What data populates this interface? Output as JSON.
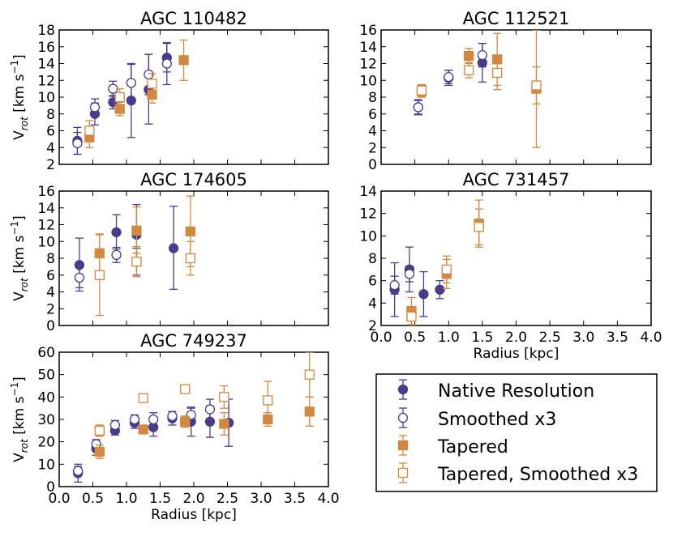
{
  "colors": {
    "native": "#483d8b",
    "tapered": "#d2883e"
  },
  "common": {
    "xlabel": "Radius [kpc]",
    "ylabel_main": "V",
    "ylabel_sub": "rot",
    "ylabel_units": " [km s",
    "ylabel_exp": "−1",
    "ylabel_close": "]"
  },
  "legend": {
    "entries": [
      {
        "label": "Native Resolution",
        "marker": "circle",
        "fill": true,
        "color": "#483d8b"
      },
      {
        "label": "Smoothed x3",
        "marker": "circle",
        "fill": false,
        "color": "#483d8b"
      },
      {
        "label": "Tapered",
        "marker": "square",
        "fill": true,
        "color": "#d2883e"
      },
      {
        "label": "Tapered, Smoothed x3",
        "marker": "square",
        "fill": false,
        "color": "#d2883e"
      }
    ]
  },
  "chart_data": [
    {
      "type": "scatter",
      "title": "AGC 110482",
      "xlim": [
        0,
        4
      ],
      "ylim": [
        2,
        18
      ],
      "yticks": [
        2,
        4,
        6,
        8,
        10,
        12,
        14,
        16,
        18
      ],
      "xticks": [],
      "xlabel": "",
      "ylabel": true,
      "series": [
        {
          "name": "Native Resolution",
          "marker": "circle",
          "fill": true,
          "color": "#483d8b",
          "points": [
            [
              0.27,
              4.8,
              3.2,
              6.4
            ],
            [
              0.53,
              8.0,
              6.7,
              9.3
            ],
            [
              0.8,
              9.4,
              8.6,
              10.2
            ],
            [
              1.07,
              9.6,
              5.2,
              13.9
            ],
            [
              1.33,
              10.9,
              6.8,
              15.1
            ],
            [
              1.6,
              14.7,
              13.0,
              16.4
            ]
          ]
        },
        {
          "name": "Smoothed x3",
          "marker": "circle",
          "fill": false,
          "color": "#483d8b",
          "points": [
            [
              0.27,
              4.5,
              3.2,
              5.8
            ],
            [
              0.53,
              8.8,
              7.8,
              9.8
            ],
            [
              0.8,
              11.0,
              10.1,
              11.9
            ],
            [
              1.07,
              11.7,
              9.4,
              14.0
            ],
            [
              1.33,
              12.7,
              10.3,
              15.1
            ],
            [
              1.6,
              14.0,
              11.5,
              16.5
            ]
          ]
        },
        {
          "name": "Tapered",
          "marker": "square",
          "fill": true,
          "color": "#d2883e",
          "points": [
            [
              0.45,
              5.2,
              4.0,
              6.4
            ],
            [
              0.9,
              8.6,
              7.8,
              9.4
            ],
            [
              1.38,
              10.3,
              9.3,
              11.3
            ],
            [
              1.85,
              14.4,
              12.0,
              16.8
            ]
          ]
        },
        {
          "name": "Tapered, Smoothed x3",
          "marker": "square",
          "fill": false,
          "color": "#d2883e",
          "points": [
            [
              0.45,
              6.0,
              4.8,
              7.2
            ],
            [
              0.9,
              10.0,
              9.0,
              11.0
            ],
            [
              1.38,
              11.6,
              10.4,
              12.8
            ]
          ]
        }
      ]
    },
    {
      "type": "scatter",
      "title": "AGC 112521",
      "xlim": [
        0,
        4
      ],
      "ylim": [
        0,
        16
      ],
      "yticks": [
        0,
        2,
        4,
        6,
        8,
        10,
        12,
        14,
        16
      ],
      "xticks": [],
      "xlabel": "",
      "ylabel": false,
      "series": [
        {
          "name": "Native Resolution",
          "marker": "circle",
          "fill": true,
          "color": "#483d8b",
          "points": [
            [
              0.55,
              6.8,
              5.9,
              7.7
            ],
            [
              1.0,
              10.3,
              9.4,
              11.2
            ],
            [
              1.5,
              12.1,
              9.8,
              14.4
            ]
          ]
        },
        {
          "name": "Smoothed x3",
          "marker": "circle",
          "fill": false,
          "color": "#483d8b",
          "points": [
            [
              0.55,
              6.8,
              6.0,
              7.6
            ],
            [
              1.0,
              10.4,
              9.6,
              11.2
            ],
            [
              1.5,
              13.0,
              11.6,
              14.4
            ]
          ]
        },
        {
          "name": "Tapered",
          "marker": "square",
          "fill": true,
          "color": "#d2883e",
          "points": [
            [
              0.6,
              8.7,
              8.0,
              9.4
            ],
            [
              1.3,
              12.9,
              12.0,
              13.8
            ],
            [
              1.72,
              12.5,
              9.4,
              15.6
            ],
            [
              2.3,
              9.0,
              2.0,
              16.0
            ]
          ]
        },
        {
          "name": "Tapered, Smoothed x3",
          "marker": "square",
          "fill": false,
          "color": "#d2883e",
          "points": [
            [
              0.6,
              8.8,
              8.1,
              9.5
            ],
            [
              1.3,
              11.2,
              10.3,
              12.1
            ],
            [
              1.72,
              10.9,
              8.9,
              12.9
            ],
            [
              2.3,
              9.4,
              7.2,
              11.6
            ]
          ]
        }
      ]
    },
    {
      "type": "scatter",
      "title": "AGC 174605",
      "xlim": [
        0,
        4
      ],
      "ylim": [
        0,
        16
      ],
      "yticks": [
        0,
        2,
        4,
        6,
        8,
        10,
        12,
        14,
        16
      ],
      "xticks": [],
      "xlabel": "",
      "ylabel": true,
      "series": [
        {
          "name": "Native Resolution",
          "marker": "circle",
          "fill": true,
          "color": "#483d8b",
          "points": [
            [
              0.3,
              7.2,
              4.1,
              10.4
            ],
            [
              0.85,
              11.1,
              9.1,
              13.2
            ],
            [
              1.15,
              10.8,
              7.2,
              14.4
            ],
            [
              1.7,
              9.2,
              4.3,
              14.2
            ]
          ]
        },
        {
          "name": "Smoothed x3",
          "marker": "circle",
          "fill": false,
          "color": "#483d8b",
          "points": [
            [
              0.3,
              5.7,
              4.5,
              6.9
            ],
            [
              0.85,
              8.4,
              7.5,
              9.3
            ],
            [
              1.15,
              7.6,
              6.0,
              9.2
            ]
          ]
        },
        {
          "name": "Tapered",
          "marker": "square",
          "fill": true,
          "color": "#d2883e",
          "points": [
            [
              0.6,
              8.6,
              6.3,
              10.9
            ],
            [
              1.15,
              11.3,
              8.6,
              14.1
            ],
            [
              1.95,
              11.2,
              7.0,
              15.4
            ]
          ]
        },
        {
          "name": "Tapered, Smoothed x3",
          "marker": "square",
          "fill": false,
          "color": "#d2883e",
          "points": [
            [
              0.6,
              6.0,
              1.2,
              10.8
            ],
            [
              1.15,
              7.6,
              5.8,
              9.4
            ],
            [
              1.95,
              8.0,
              6.0,
              10.0
            ]
          ]
        }
      ]
    },
    {
      "type": "scatter",
      "title": "AGC 731457",
      "xlim": [
        0,
        4
      ],
      "ylim": [
        2,
        14
      ],
      "yticks": [
        2,
        4,
        6,
        8,
        10,
        12,
        14
      ],
      "xticks": [
        0.0,
        0.5,
        1.0,
        1.5,
        2.0,
        2.5,
        3.0,
        3.5,
        4.0
      ],
      "xlabel": "Radius [kpc]",
      "ylabel": false,
      "series": [
        {
          "name": "Native Resolution",
          "marker": "circle",
          "fill": true,
          "color": "#483d8b",
          "points": [
            [
              0.2,
              5.2,
              2.8,
              7.6
            ],
            [
              0.42,
              7.0,
              5.0,
              9.0
            ],
            [
              0.63,
              4.8,
              2.8,
              6.8
            ],
            [
              0.87,
              5.2,
              4.4,
              6.0
            ]
          ]
        },
        {
          "name": "Smoothed x3",
          "marker": "circle",
          "fill": false,
          "color": "#483d8b",
          "points": [
            [
              0.2,
              5.6,
              4.8,
              6.4
            ],
            [
              0.42,
              6.6,
              5.9,
              7.3
            ]
          ]
        },
        {
          "name": "Tapered",
          "marker": "square",
          "fill": true,
          "color": "#d2883e",
          "points": [
            [
              0.45,
              3.3,
              2.1,
              4.5
            ],
            [
              0.97,
              6.6,
              5.3,
              7.9
            ],
            [
              1.45,
              11.1,
              9.0,
              13.2
            ]
          ]
        },
        {
          "name": "Tapered, Smoothed x3",
          "marker": "square",
          "fill": false,
          "color": "#d2883e",
          "points": [
            [
              0.45,
              2.8,
              2.0,
              3.6
            ],
            [
              0.97,
              7.0,
              5.8,
              8.2
            ],
            [
              1.45,
              10.8,
              9.2,
              12.4
            ]
          ]
        }
      ]
    },
    {
      "type": "scatter",
      "title": "AGC 749237",
      "xlim": [
        0,
        4
      ],
      "ylim": [
        0,
        60
      ],
      "yticks": [
        0,
        10,
        20,
        30,
        40,
        50,
        60
      ],
      "xticks": [
        0.0,
        0.5,
        1.0,
        1.5,
        2.0,
        2.5,
        3.0,
        3.5,
        4.0
      ],
      "xlabel": "Radius [kpc]",
      "ylabel": true,
      "series": [
        {
          "name": "Native Resolution",
          "marker": "circle",
          "fill": true,
          "color": "#483d8b",
          "points": [
            [
              0.28,
              6.0,
              2.0,
              10.0
            ],
            [
              0.55,
              17.0,
              14.0,
              20.0
            ],
            [
              0.83,
              25.0,
              23.0,
              27.0
            ],
            [
              1.12,
              28.5,
              26.0,
              31.0
            ],
            [
              1.4,
              26.5,
              22.5,
              30.5
            ],
            [
              1.68,
              30.5,
              27.5,
              33.5
            ],
            [
              1.96,
              29.0,
              22.5,
              35.5
            ],
            [
              2.24,
              29.0,
              22.0,
              36.0
            ],
            [
              2.52,
              28.5,
              18.0,
              39.0
            ]
          ]
        },
        {
          "name": "Smoothed x3",
          "marker": "circle",
          "fill": false,
          "color": "#483d8b",
          "points": [
            [
              0.28,
              7.0,
              5.0,
              9.0
            ],
            [
              0.55,
              19.0,
              17.0,
              21.0
            ],
            [
              0.83,
              27.5,
              25.5,
              29.5
            ],
            [
              1.12,
              30.0,
              28.0,
              32.0
            ],
            [
              1.4,
              30.0,
              27.0,
              33.0
            ],
            [
              1.68,
              31.5,
              29.5,
              33.5
            ],
            [
              1.96,
              32.0,
              29.0,
              35.0
            ],
            [
              2.24,
              34.5,
              30.0,
              39.0
            ]
          ]
        },
        {
          "name": "Tapered",
          "marker": "square",
          "fill": true,
          "color": "#d2883e",
          "points": [
            [
              0.6,
              15.5,
              12.5,
              18.5
            ],
            [
              1.25,
              25.5,
              24.0,
              27.0
            ],
            [
              1.87,
              29.0,
              26.5,
              31.5
            ],
            [
              2.45,
              28.0,
              23.0,
              33.0
            ],
            [
              3.1,
              30.0,
              27.0,
              33.0
            ],
            [
              3.72,
              33.5,
              27.0,
              40.0
            ]
          ]
        },
        {
          "name": "Tapered, Smoothed x3",
          "marker": "square",
          "fill": false,
          "color": "#d2883e",
          "points": [
            [
              0.6,
              25.0,
              22.5,
              27.5
            ],
            [
              1.25,
              39.5,
              38.5,
              40.5
            ],
            [
              1.87,
              43.5,
              42.0,
              45.0
            ],
            [
              2.45,
              40.0,
              35.0,
              45.0
            ],
            [
              3.1,
              38.5,
              30.0,
              47.0
            ],
            [
              3.72,
              50.0,
              40.0,
              60.0
            ]
          ]
        }
      ]
    }
  ]
}
